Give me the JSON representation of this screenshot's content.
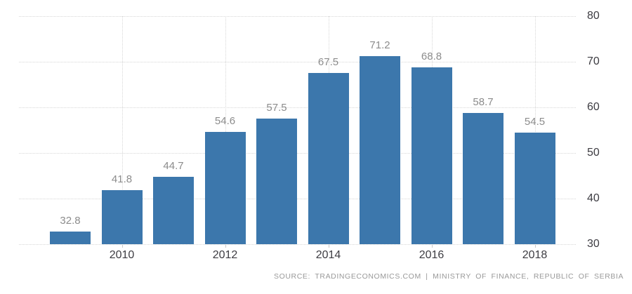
{
  "chart_data": {
    "type": "bar",
    "title": "",
    "x": [
      2009,
      2010,
      2011,
      2012,
      2013,
      2014,
      2015,
      2016,
      2017,
      2018
    ],
    "values": [
      32.8,
      41.8,
      44.7,
      54.6,
      57.5,
      67.5,
      71.2,
      68.8,
      58.7,
      54.5
    ],
    "bar_labels": [
      "32.8",
      "41.8",
      "44.7",
      "54.6",
      "57.5",
      "67.5",
      "71.2",
      "68.8",
      "58.7",
      "54.5"
    ],
    "x_tick_labels": [
      "2010",
      "2012",
      "2014",
      "2016",
      "2018"
    ],
    "x_tick_years": [
      2010,
      2012,
      2014,
      2016,
      2018
    ],
    "y_ticks": [
      30,
      40,
      50,
      60,
      70,
      80
    ],
    "ylim": [
      30,
      80
    ],
    "grid": true,
    "legend_position": "none",
    "y_axis_side": "right",
    "colors": {
      "bar": "#3c77ac",
      "value_label": "#8c8c8c",
      "axis_label": "#3d3c42",
      "gridline": "#d7d7d7"
    }
  },
  "footer": {
    "source_text": "SOURCE: TRADINGECONOMICS.COM | MINISTRY OF FINANCE, REPUBLIC OF SERBIA"
  }
}
